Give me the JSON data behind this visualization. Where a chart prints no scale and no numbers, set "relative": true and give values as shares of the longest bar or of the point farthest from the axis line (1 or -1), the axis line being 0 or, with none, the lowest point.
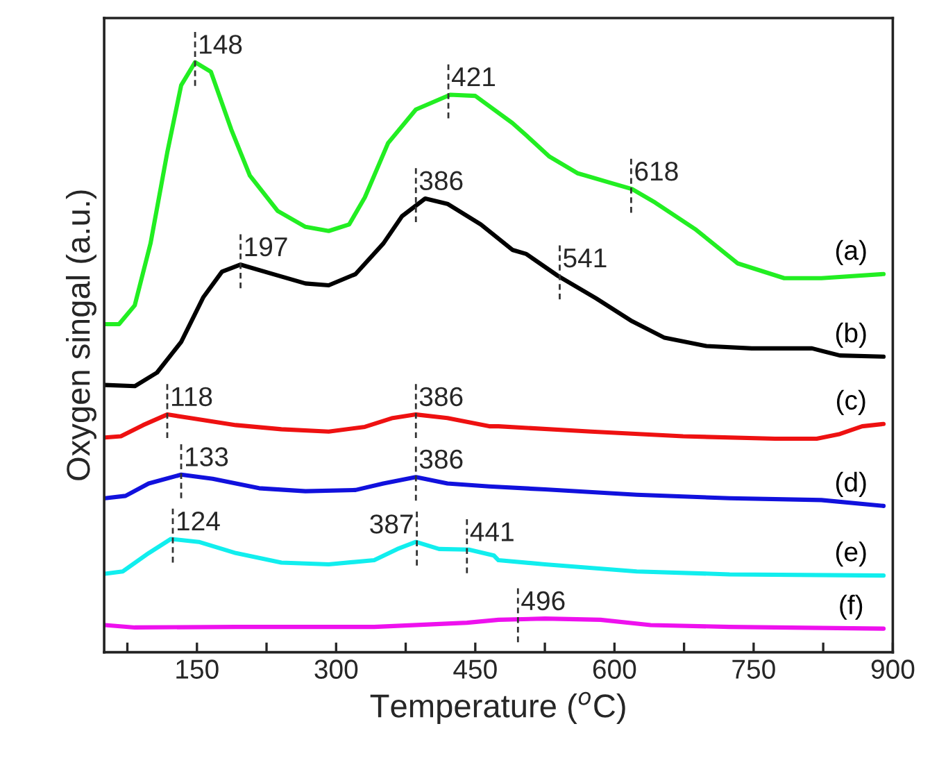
{
  "chart_data": {
    "type": "line",
    "relative": true,
    "xlabel": "Temperature ($^{o}$C)",
    "ylabel": "Oxygen singal (a.u.)",
    "xlim": [
      50,
      900
    ],
    "xticks": [
      {
        "value": 75,
        "label": null
      },
      150,
      {
        "value": 225,
        "label": null
      },
      300,
      {
        "value": 375,
        "label": null
      },
      450,
      {
        "value": 525,
        "label": null
      },
      600,
      {
        "value": 675,
        "label": null
      },
      750,
      {
        "value": 825,
        "label": null
      },
      900
    ],
    "grid": false,
    "legend": false,
    "marker": "none",
    "line_style": "solid",
    "series": [
      {
        "name": "(a)",
        "color": "#22ee22",
        "x": [
          51,
          66,
          83,
          100,
          118,
          133,
          148,
          165,
          187,
          207,
          237,
          267,
          292,
          314,
          331,
          356,
          386,
          423,
          450,
          490,
          505,
          530,
          560,
          595,
          619,
          644,
          688,
          733,
          783,
          823,
          890
        ],
        "values": [
          0.556,
          0.556,
          0.588,
          0.693,
          0.847,
          0.961,
          1.0,
          0.984,
          0.886,
          0.808,
          0.748,
          0.721,
          0.714,
          0.725,
          0.771,
          0.863,
          0.92,
          0.945,
          0.943,
          0.897,
          0.876,
          0.84,
          0.812,
          0.796,
          0.785,
          0.762,
          0.716,
          0.659,
          0.634,
          0.634,
          0.641
        ]
      },
      {
        "name": "(b)",
        "color": "#000000",
        "x": [
          51,
          83,
          107,
          133,
          157,
          177,
          197,
          232,
          267,
          292,
          321,
          351,
          371,
          396,
          420,
          456,
          490,
          505,
          539,
          580,
          619,
          654,
          699,
          748,
          813,
          843,
          890
        ],
        "values": [
          0.453,
          0.451,
          0.474,
          0.526,
          0.602,
          0.645,
          0.657,
          0.641,
          0.625,
          0.622,
          0.641,
          0.693,
          0.739,
          0.769,
          0.76,
          0.725,
          0.682,
          0.675,
          0.638,
          0.6,
          0.561,
          0.533,
          0.519,
          0.515,
          0.515,
          0.503,
          0.501
        ]
      },
      {
        "name": "(c)",
        "color": "#ee1111",
        "x": [
          51,
          68,
          92,
          118,
          143,
          192,
          241,
          292,
          331,
          361,
          386,
          420,
          465,
          475,
          575,
          674,
          773,
          818,
          843,
          867,
          890
        ],
        "values": [
          0.364,
          0.366,
          0.385,
          0.403,
          0.397,
          0.385,
          0.378,
          0.374,
          0.382,
          0.397,
          0.403,
          0.397,
          0.383,
          0.383,
          0.374,
          0.366,
          0.362,
          0.362,
          0.37,
          0.383,
          0.387
        ]
      },
      {
        "name": "(d)",
        "color": "#1111dd",
        "x": [
          51,
          73,
          98,
          133,
          167,
          217,
          267,
          321,
          351,
          386,
          420,
          465,
          525,
          624,
          724,
          823,
          890
        ],
        "values": [
          0.261,
          0.265,
          0.286,
          0.301,
          0.294,
          0.278,
          0.273,
          0.275,
          0.286,
          0.297,
          0.286,
          0.281,
          0.276,
          0.267,
          0.261,
          0.258,
          0.248
        ]
      },
      {
        "name": "(e)",
        "color": "#11eeee",
        "x": [
          51,
          70,
          98,
          122,
          152,
          192,
          241,
          292,
          341,
          366,
          386,
          411,
          443,
          470,
          475,
          525,
          624,
          724,
          890
        ],
        "values": [
          0.133,
          0.137,
          0.168,
          0.192,
          0.187,
          0.168,
          0.152,
          0.149,
          0.156,
          0.175,
          0.187,
          0.175,
          0.174,
          0.164,
          0.156,
          0.149,
          0.137,
          0.132,
          0.13
        ]
      },
      {
        "name": "(f)",
        "color": "#ee11ee",
        "x": [
          51,
          83,
          192,
          341,
          441,
          475,
          525,
          585,
          639,
          724,
          890
        ],
        "values": [
          0.046,
          0.042,
          0.043,
          0.043,
          0.05,
          0.055,
          0.057,
          0.055,
          0.046,
          0.043,
          0.04
        ]
      }
    ],
    "annotations": [
      {
        "text": "148",
        "x": 148,
        "y": 1.0
      },
      {
        "text": "421",
        "x": 421,
        "y": 0.945
      },
      {
        "text": "618",
        "x": 618,
        "y": 0.785
      },
      {
        "text": "197",
        "x": 197,
        "y": 0.657
      },
      {
        "text": "386",
        "x": 386,
        "y": 0.769
      },
      {
        "text": "541",
        "x": 541,
        "y": 0.638
      },
      {
        "text": "118",
        "x": 118,
        "y": 0.403
      },
      {
        "text": "386",
        "x": 386,
        "y": 0.403
      },
      {
        "text": "133",
        "x": 133,
        "y": 0.301
      },
      {
        "text": "386",
        "x": 386,
        "y": 0.297
      },
      {
        "text": "124",
        "x": 124,
        "y": 0.192
      },
      {
        "text": "387",
        "x": 387,
        "y": 0.187
      },
      {
        "text": "441",
        "x": 441,
        "y": 0.174
      },
      {
        "text": "496",
        "x": 496,
        "y": 0.057
      }
    ]
  }
}
